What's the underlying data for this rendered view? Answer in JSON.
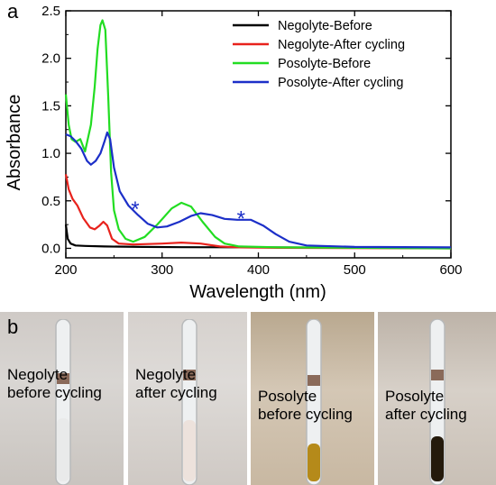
{
  "panel_a_label": "a",
  "panel_b_label": "b",
  "chart_data": {
    "type": "line",
    "title": "",
    "xlabel": "Wavelength (nm)",
    "ylabel": "Absorbance",
    "xlim": [
      200,
      600
    ],
    "ylim": [
      -0.1,
      2.5
    ],
    "xticks": [
      "200",
      "300",
      "400",
      "500",
      "600"
    ],
    "yticks": [
      "0.0",
      "0.5",
      "1.0",
      "1.5",
      "2.0",
      "2.5"
    ],
    "grid": false,
    "legend_position": "top-right",
    "series": [
      {
        "name": "Negolyte-Before",
        "color": "#000000",
        "points": [
          [
            200,
            0.25
          ],
          [
            202,
            0.1
          ],
          [
            205,
            0.05
          ],
          [
            210,
            0.03
          ],
          [
            220,
            0.025
          ],
          [
            240,
            0.02
          ],
          [
            280,
            0.015
          ],
          [
            320,
            0.012
          ],
          [
            400,
            0.01
          ],
          [
            500,
            0.008
          ],
          [
            600,
            0.005
          ]
        ]
      },
      {
        "name": "Negolyte-After cycling",
        "color": "#e8221c",
        "points": [
          [
            200,
            0.78
          ],
          [
            203,
            0.62
          ],
          [
            207,
            0.52
          ],
          [
            212,
            0.45
          ],
          [
            218,
            0.32
          ],
          [
            225,
            0.22
          ],
          [
            230,
            0.2
          ],
          [
            235,
            0.24
          ],
          [
            239,
            0.28
          ],
          [
            243,
            0.24
          ],
          [
            248,
            0.1
          ],
          [
            255,
            0.05
          ],
          [
            270,
            0.04
          ],
          [
            300,
            0.05
          ],
          [
            320,
            0.06
          ],
          [
            340,
            0.05
          ],
          [
            360,
            0.02
          ],
          [
            380,
            0.01
          ],
          [
            420,
            0.005
          ],
          [
            600,
            0.0
          ]
        ]
      },
      {
        "name": "Posolyte-Before",
        "color": "#22dd22",
        "points": [
          [
            200,
            1.62
          ],
          [
            203,
            1.3
          ],
          [
            206,
            1.15
          ],
          [
            210,
            1.12
          ],
          [
            215,
            1.15
          ],
          [
            220,
            1.02
          ],
          [
            226,
            1.3
          ],
          [
            230,
            1.7
          ],
          [
            233,
            2.1
          ],
          [
            236,
            2.35
          ],
          [
            238,
            2.4
          ],
          [
            241,
            2.3
          ],
          [
            244,
            1.6
          ],
          [
            247,
            0.8
          ],
          [
            250,
            0.4
          ],
          [
            255,
            0.2
          ],
          [
            262,
            0.1
          ],
          [
            270,
            0.07
          ],
          [
            282,
            0.12
          ],
          [
            295,
            0.25
          ],
          [
            310,
            0.42
          ],
          [
            320,
            0.48
          ],
          [
            330,
            0.44
          ],
          [
            342,
            0.28
          ],
          [
            355,
            0.12
          ],
          [
            365,
            0.05
          ],
          [
            380,
            0.02
          ],
          [
            420,
            0.01
          ],
          [
            600,
            0.0
          ]
        ]
      },
      {
        "name": "Posolyte-After cycling",
        "color": "#1c2fc8",
        "points": [
          [
            200,
            1.2
          ],
          [
            205,
            1.18
          ],
          [
            210,
            1.13
          ],
          [
            216,
            1.05
          ],
          [
            222,
            0.92
          ],
          [
            226,
            0.88
          ],
          [
            231,
            0.92
          ],
          [
            236,
            1.0
          ],
          [
            240,
            1.12
          ],
          [
            243,
            1.22
          ],
          [
            246,
            1.15
          ],
          [
            250,
            0.85
          ],
          [
            256,
            0.6
          ],
          [
            265,
            0.45
          ],
          [
            275,
            0.35
          ],
          [
            285,
            0.26
          ],
          [
            295,
            0.22
          ],
          [
            305,
            0.23
          ],
          [
            318,
            0.28
          ],
          [
            330,
            0.34
          ],
          [
            340,
            0.37
          ],
          [
            352,
            0.35
          ],
          [
            365,
            0.31
          ],
          [
            378,
            0.3
          ],
          [
            392,
            0.3
          ],
          [
            405,
            0.24
          ],
          [
            418,
            0.15
          ],
          [
            432,
            0.07
          ],
          [
            450,
            0.03
          ],
          [
            500,
            0.015
          ],
          [
            600,
            0.01
          ]
        ]
      }
    ],
    "annotations": [
      {
        "text": "*",
        "x": 272,
        "y": 0.43,
        "color": "#1c2fc8"
      },
      {
        "text": "*",
        "x": 382,
        "y": 0.33,
        "color": "#1c2fc8"
      }
    ]
  },
  "photos": [
    {
      "label": "Negolyte\nbefore cycling",
      "liquid_color": "#e9eaea"
    },
    {
      "label": "Negolyte\nafter cycling",
      "liquid_color": "#ede2dc"
    },
    {
      "label": "Posolyte\nbefore cycling",
      "liquid_color": "#b58a1a"
    },
    {
      "label": "Posolyte\nafter cycling",
      "liquid_color": "#241a0c"
    }
  ]
}
